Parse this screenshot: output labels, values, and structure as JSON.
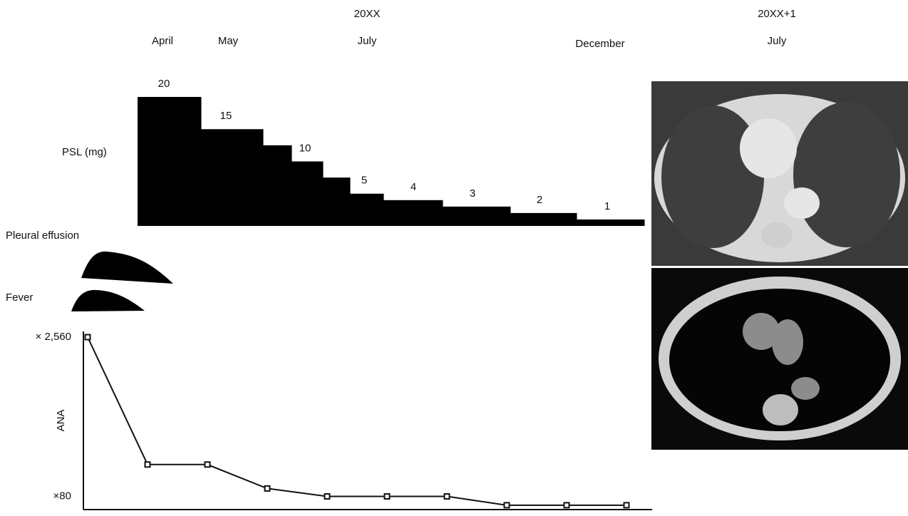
{
  "timeline": {
    "years": [
      "20XX",
      "20XX+1"
    ],
    "months": [
      "April",
      "May",
      "July",
      "December",
      "July"
    ]
  },
  "events": [
    "Pleural effusion",
    "Fever"
  ],
  "chart_data": [
    {
      "type": "step",
      "ylabel": "PSL (mg)",
      "values": [
        20,
        15,
        12.5,
        10,
        7.5,
        5,
        4,
        3,
        2,
        1
      ],
      "value_labels": [
        "20",
        "15",
        null,
        "10",
        null,
        "5",
        "4",
        "3",
        "2",
        "1"
      ],
      "ylim": [
        0,
        20
      ],
      "color": "#000000"
    },
    {
      "type": "line",
      "ylabel": "ANA",
      "log_scale": true,
      "values": [
        2560,
        160,
        160,
        95,
        80,
        80,
        80,
        66,
        66,
        66
      ],
      "ylim": [
        60,
        2900
      ],
      "yticks": [
        {
          "value": 2560,
          "label": "× 2,560"
        },
        {
          "value": 80,
          "label": "×80"
        }
      ],
      "color": "#111111"
    }
  ]
}
